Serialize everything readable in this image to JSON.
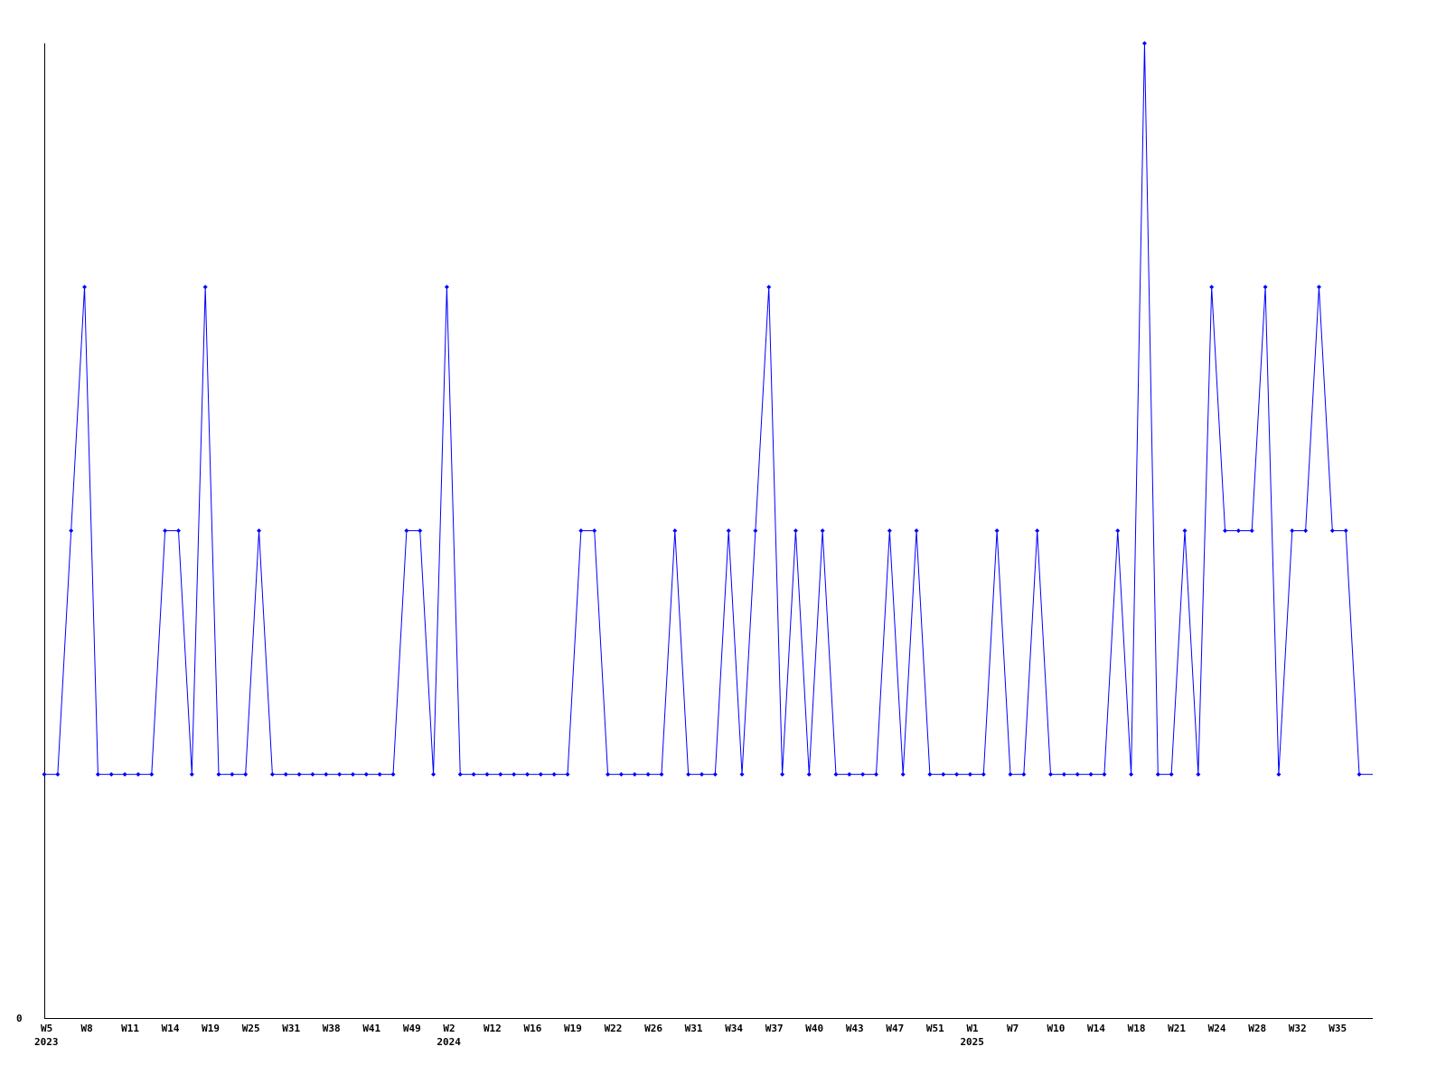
{
  "chart_data": {
    "type": "line",
    "title": "",
    "xlabel": "",
    "ylabel": "",
    "ylim": [
      0,
      4
    ],
    "y_tick_labels": [
      "0"
    ],
    "grid": false,
    "line_color": "#0000ff",
    "axis_color": "#000000",
    "tick_every_n_points": 3,
    "x_tick_labels": [
      "W5",
      "W8",
      "W11",
      "W14",
      "W19",
      "W25",
      "W31",
      "W38",
      "W41",
      "W49",
      "W2",
      "W12",
      "W16",
      "W19",
      "W22",
      "W26",
      "W31",
      "W34",
      "W37",
      "W40",
      "W43",
      "W47",
      "W51",
      "W1",
      "W7",
      "W10",
      "W14",
      "W18",
      "W21",
      "W24",
      "W28",
      "W32",
      "W35"
    ],
    "year_labels": [
      {
        "label": "2023",
        "tick": "W5"
      },
      {
        "label": "2024",
        "tick": "W2"
      },
      {
        "label": "2025",
        "tick": "W1"
      }
    ],
    "values": [
      1,
      1,
      2,
      3,
      1,
      1,
      1,
      1,
      1,
      2,
      2,
      1,
      3,
      1,
      1,
      1,
      2,
      1,
      1,
      1,
      1,
      1,
      1,
      1,
      1,
      1,
      1,
      2,
      2,
      1,
      3,
      1,
      1,
      1,
      1,
      1,
      1,
      1,
      1,
      1,
      2,
      2,
      1,
      1,
      1,
      1,
      1,
      2,
      1,
      1,
      1,
      2,
      1,
      2,
      3,
      1,
      2,
      1,
      2,
      1,
      1,
      1,
      1,
      2,
      1,
      2,
      1,
      1,
      1,
      1,
      1,
      2,
      1,
      1,
      2,
      1,
      1,
      1,
      1,
      1,
      2,
      1,
      4,
      1,
      1,
      2,
      1,
      3,
      2,
      2,
      2,
      3,
      1,
      2,
      2,
      3,
      2,
      2,
      1
    ]
  }
}
